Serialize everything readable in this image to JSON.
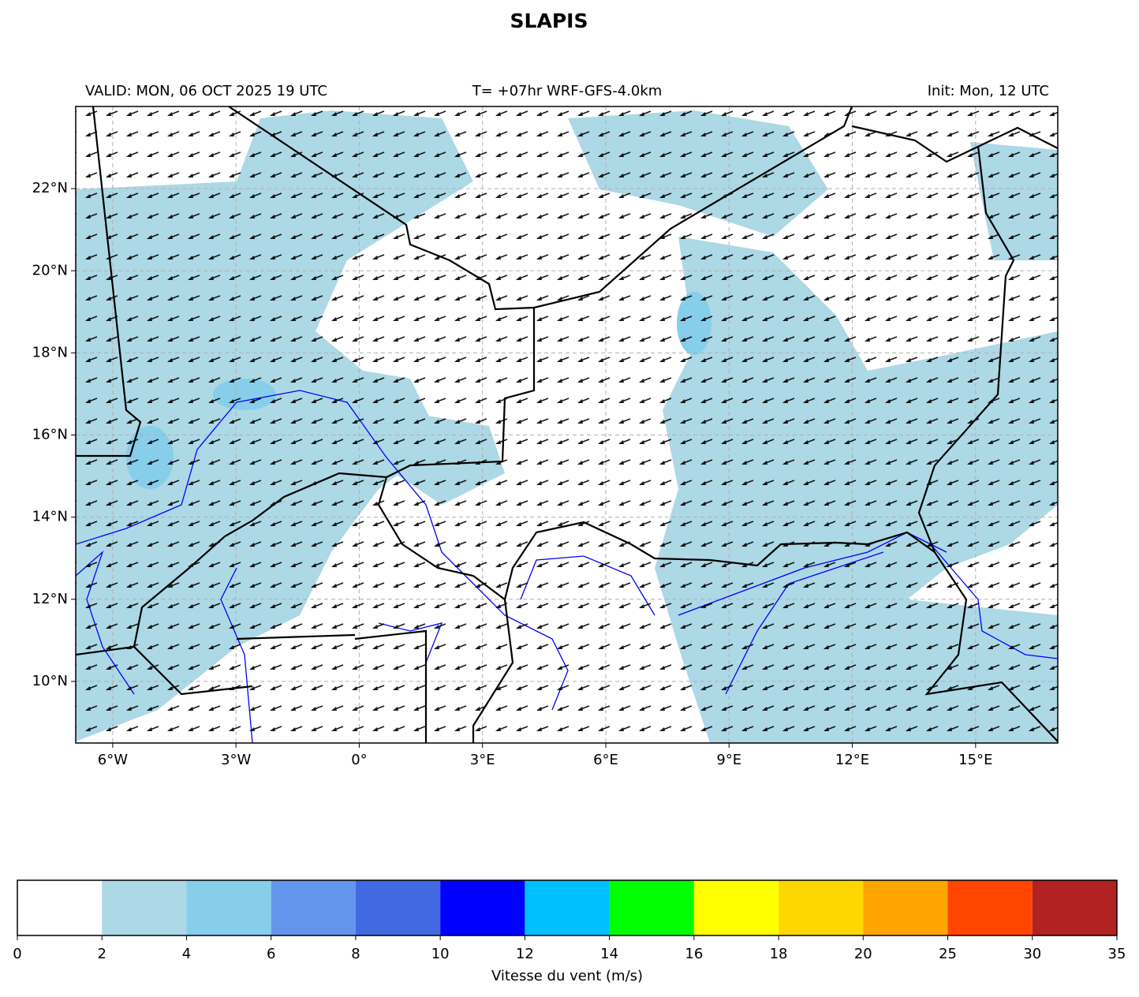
{
  "header": {
    "title": "SLAPIS",
    "valid": "VALID: MON, 06 OCT 2025 19 UTC",
    "run": "T= +07hr WRF-GFS-4.0km",
    "init": "Init: Mon, 12 UTC"
  },
  "map": {
    "xlim": [
      -6.9,
      17
    ],
    "ylim": [
      8.5,
      24
    ],
    "xticks": [
      {
        "value": -6,
        "label": "6°W"
      },
      {
        "value": -3,
        "label": "3°W"
      },
      {
        "value": 0,
        "label": "0°"
      },
      {
        "value": 3,
        "label": "3°E"
      },
      {
        "value": 6,
        "label": "6°E"
      },
      {
        "value": 9,
        "label": "9°E"
      },
      {
        "value": 12,
        "label": "12°E"
      },
      {
        "value": 15,
        "label": "15°E"
      }
    ],
    "yticks": [
      {
        "value": 10,
        "label": "10°N"
      },
      {
        "value": 12,
        "label": "12°N"
      },
      {
        "value": 14,
        "label": "14°N"
      },
      {
        "value": 16,
        "label": "16°N"
      },
      {
        "value": 18,
        "label": "18°N"
      },
      {
        "value": 20,
        "label": "20°N"
      },
      {
        "value": 22,
        "label": "22°N"
      }
    ],
    "grid": true
  },
  "colorbar": {
    "label": "Vitesse du vent (m/s)",
    "boundaries": [
      0,
      2,
      4,
      6,
      8,
      10,
      12,
      14,
      16,
      18,
      20,
      25,
      30,
      35
    ],
    "colors": [
      "#ffffff",
      "#add8e6",
      "#87ceeb",
      "#6495ed",
      "#4169e1",
      "#0000ff",
      "#00bfff",
      "#00ff00",
      "#ffff00",
      "#ffd700",
      "#ffa500",
      "#ff4500",
      "#b22222"
    ]
  }
}
